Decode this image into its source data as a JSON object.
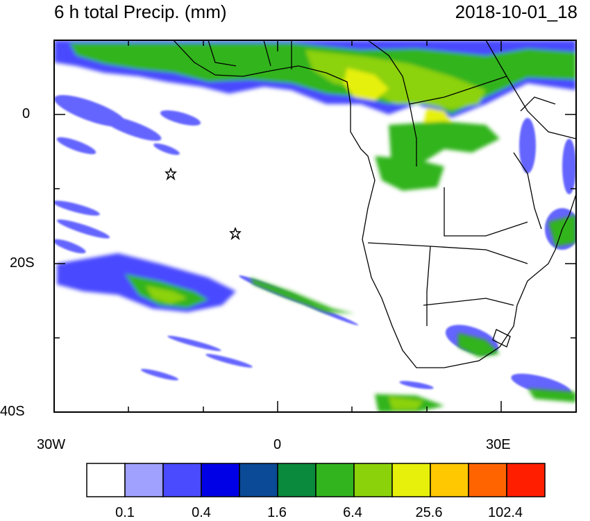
{
  "header": {
    "title": "6 h total Precip. (mm)",
    "datetime": "2018-10-01_18"
  },
  "axes": {
    "y_ticks": [
      "0",
      "20S",
      "40S"
    ],
    "x_ticks": [
      "30W",
      "0",
      "30E"
    ]
  },
  "colorbar": {
    "colors": [
      "#ffffff",
      "#a0a0ff",
      "#4a4aff",
      "#0000e6",
      "#0a4a96",
      "#0a8a3c",
      "#32b41e",
      "#8cd20a",
      "#e6f00a",
      "#ffc800",
      "#ff6400",
      "#ff1e00"
    ],
    "labels": [
      "0.1",
      "0.4",
      "1.6",
      "6.4",
      "25.6",
      "102.4"
    ]
  },
  "markers": {
    "count": 2,
    "symbol": "star-icon"
  }
}
